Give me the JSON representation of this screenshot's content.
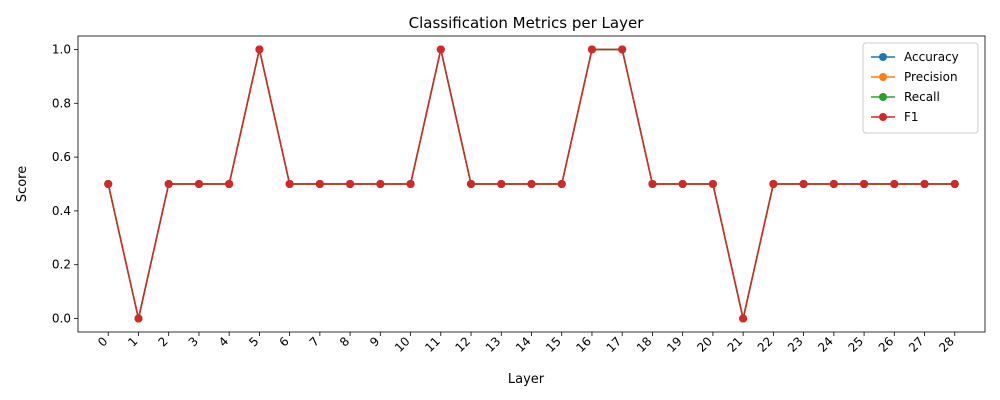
{
  "chart_data": {
    "type": "line",
    "title": "Classification Metrics per Layer",
    "xlabel": "Layer",
    "ylabel": "Score",
    "x": [
      0,
      1,
      2,
      3,
      4,
      5,
      6,
      7,
      8,
      9,
      10,
      11,
      12,
      13,
      14,
      15,
      16,
      17,
      18,
      19,
      20,
      21,
      22,
      23,
      24,
      25,
      26,
      27,
      28
    ],
    "x_tick_labels": [
      "0",
      "1",
      "2",
      "3",
      "4",
      "5",
      "6",
      "7",
      "8",
      "9",
      "10",
      "11",
      "12",
      "13",
      "14",
      "15",
      "16",
      "17",
      "18",
      "19",
      "20",
      "21",
      "22",
      "23",
      "24",
      "25",
      "26",
      "27",
      "28"
    ],
    "ylim": [
      -0.05,
      1.05
    ],
    "y_ticks": [
      0.0,
      0.2,
      0.4,
      0.6,
      0.8,
      1.0
    ],
    "y_tick_labels": [
      "0.0",
      "0.2",
      "0.4",
      "0.6",
      "0.8",
      "1.0"
    ],
    "grid": false,
    "legend_position": "top-right",
    "series": [
      {
        "name": "Accuracy",
        "color": "#1f77b4",
        "values": [
          0.5,
          0,
          0.5,
          0.5,
          0.5,
          1,
          0.5,
          0.5,
          0.5,
          0.5,
          0.5,
          1,
          0.5,
          0.5,
          0.5,
          0.5,
          1,
          1,
          0.5,
          0.5,
          0.5,
          0,
          0.5,
          0.5,
          0.5,
          0.5,
          0.5,
          0.5,
          0.5
        ]
      },
      {
        "name": "Precision",
        "color": "#ff7f0e",
        "values": [
          0.5,
          0,
          0.5,
          0.5,
          0.5,
          1,
          0.5,
          0.5,
          0.5,
          0.5,
          0.5,
          1,
          0.5,
          0.5,
          0.5,
          0.5,
          1,
          1,
          0.5,
          0.5,
          0.5,
          0,
          0.5,
          0.5,
          0.5,
          0.5,
          0.5,
          0.5,
          0.5
        ]
      },
      {
        "name": "Recall",
        "color": "#2ca02c",
        "values": [
          0.5,
          0,
          0.5,
          0.5,
          0.5,
          1,
          0.5,
          0.5,
          0.5,
          0.5,
          0.5,
          1,
          0.5,
          0.5,
          0.5,
          0.5,
          1,
          1,
          0.5,
          0.5,
          0.5,
          0,
          0.5,
          0.5,
          0.5,
          0.5,
          0.5,
          0.5,
          0.5
        ]
      },
      {
        "name": "F1",
        "color": "#d62728",
        "values": [
          0.5,
          0,
          0.5,
          0.5,
          0.5,
          1,
          0.5,
          0.5,
          0.5,
          0.5,
          0.5,
          1,
          0.5,
          0.5,
          0.5,
          0.5,
          1,
          1,
          0.5,
          0.5,
          0.5,
          0,
          0.5,
          0.5,
          0.5,
          0.5,
          0.5,
          0.5,
          0.5
        ]
      }
    ]
  }
}
